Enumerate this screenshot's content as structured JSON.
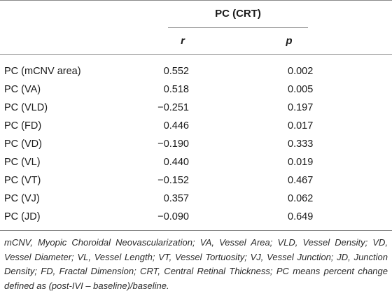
{
  "table": {
    "group_header": "PC (CRT)",
    "columns": [
      "r",
      "p"
    ],
    "rows": [
      {
        "label": "PC (mCNV area)",
        "r": "0.552",
        "p": "0.002"
      },
      {
        "label": "PC (VA)",
        "r": "0.518",
        "p": "0.005"
      },
      {
        "label": "PC (VLD)",
        "r": "−0.251",
        "p": "0.197"
      },
      {
        "label": "PC (FD)",
        "r": "0.446",
        "p": "0.017"
      },
      {
        "label": "PC (VD)",
        "r": "−0.190",
        "p": "0.333"
      },
      {
        "label": "PC (VL)",
        "r": "0.440",
        "p": "0.019"
      },
      {
        "label": "PC (VT)",
        "r": "−0.152",
        "p": "0.467"
      },
      {
        "label": "PC (VJ)",
        "r": "0.357",
        "p": "0.062"
      },
      {
        "label": "PC (JD)",
        "r": "−0.090",
        "p": "0.649"
      }
    ]
  },
  "footnote": "mCNV, Myopic Choroidal Neovascularization; VA, Vessel Area; VLD, Vessel Density; VD, Vessel Diameter; VL, Vessel Length; VT, Vessel Tortuosity; VJ, Vessel Junction; JD, Junction Density; FD, Fractal Dimension; CRT, Central Retinal Thickness; PC means percent change defined as (post-IVI – baseline)/baseline."
}
